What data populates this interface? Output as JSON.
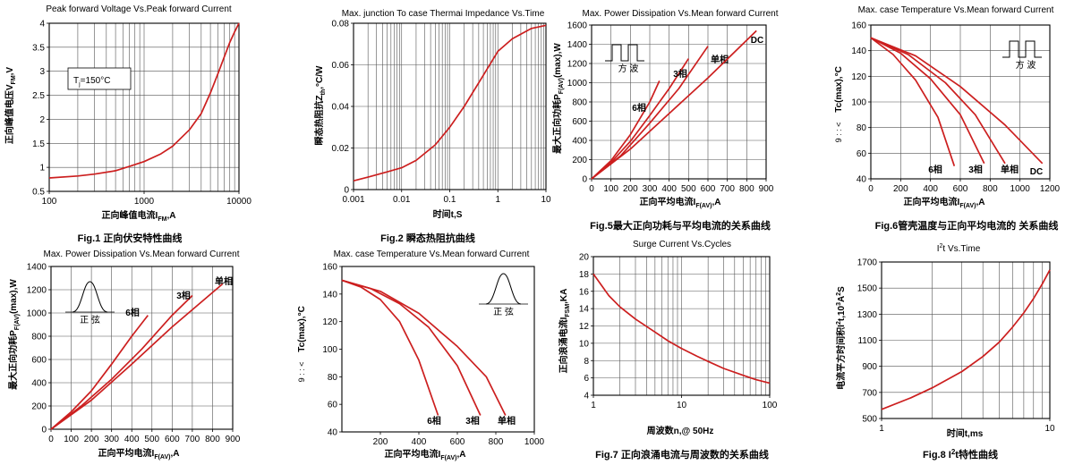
{
  "chart_data": [
    {
      "id": "fig1",
      "type": "line",
      "title": "Peak forward Voltage Vs.Peak forward Current",
      "xlabel": "正向峰值电流I",
      "xlabel_sub": "FM",
      "xlabel_unit": ",A",
      "ylabel": "正向峰值电压V",
      "ylabel_sub": "FM",
      "ylabel_unit": ",V",
      "caption": "Fig.1 正向伏安特性曲线",
      "x_scale": "log",
      "xlim": [
        100,
        10000
      ],
      "ylim": [
        0.5,
        4
      ],
      "xticks": [
        100,
        1000,
        10000
      ],
      "xtick_labels": [
        "100",
        "1000",
        "10000"
      ],
      "yticks": [
        0.5,
        1,
        1.5,
        2,
        2.5,
        3,
        3.5,
        4
      ],
      "ytick_labels": [
        "0.5",
        "1",
        "1.5",
        "2",
        "2.5",
        "3",
        "3.5",
        "4"
      ],
      "grid": true,
      "annotation": {
        "text": "T",
        "sub": "j",
        "suffix": "=150°C"
      },
      "series": [
        {
          "x": [
            100,
            200,
            300,
            500,
            700,
            1000,
            1500,
            2000,
            3000,
            4000,
            5000,
            6000,
            7000,
            8000,
            9000,
            10000
          ],
          "y": [
            0.78,
            0.82,
            0.86,
            0.93,
            1.02,
            1.12,
            1.28,
            1.44,
            1.78,
            2.12,
            2.55,
            2.95,
            3.3,
            3.6,
            3.82,
            4.0
          ]
        }
      ]
    },
    {
      "id": "fig2",
      "type": "line",
      "title": "Max. junction To case Thermai Impedance Vs.Time",
      "xlabel": "时间t,S",
      "ylabel": "瞬态热阻抗Z",
      "ylabel_sub": "th",
      "ylabel_unit": ",°C/W",
      "caption": "Fig.2  瞬态热阻抗曲线",
      "x_scale": "log",
      "xlim": [
        0.001,
        10
      ],
      "ylim": [
        0,
        0.08
      ],
      "xticks": [
        0.001,
        0.01,
        0.1,
        1,
        10
      ],
      "xtick_labels": [
        "0.001",
        "0.01",
        "0.1",
        "1",
        "10"
      ],
      "yticks": [
        0,
        0.02,
        0.04,
        0.06,
        0.08
      ],
      "ytick_labels": [
        "0",
        "0.02",
        "0.04",
        "0.06",
        "0.08"
      ],
      "grid": true,
      "series": [
        {
          "x": [
            0.001,
            0.002,
            0.005,
            0.01,
            0.02,
            0.05,
            0.1,
            0.2,
            0.5,
            1,
            2,
            5,
            10
          ],
          "y": [
            0.0042,
            0.006,
            0.0085,
            0.0105,
            0.014,
            0.0215,
            0.03,
            0.04,
            0.055,
            0.0665,
            0.0725,
            0.0775,
            0.079
          ]
        }
      ]
    },
    {
      "id": "fig5",
      "type": "line",
      "title": "Max. Power Dissipation Vs.Mean forward Current",
      "xlabel": "正向平均电流I",
      "xlabel_sub": "F(AV)",
      "xlabel_unit": ",A",
      "ylabel": "最大正向功耗P",
      "ylabel_sub": "F(AV)",
      "ylabel_unit": "(max),W",
      "caption": "Fig.5最大正向功耗与平均电流的关系曲线",
      "xlim": [
        0,
        900
      ],
      "ylim": [
        0,
        1600
      ],
      "xticks": [
        0,
        100,
        200,
        300,
        400,
        500,
        600,
        700,
        800,
        900
      ],
      "xtick_labels": [
        "0",
        "100",
        "200",
        "300",
        "400",
        "500",
        "600",
        "700",
        "800",
        "900"
      ],
      "yticks": [
        0,
        200,
        400,
        600,
        800,
        1000,
        1200,
        1400,
        1600
      ],
      "ytick_labels": [
        "0",
        "200",
        "400",
        "600",
        "800",
        "1000",
        "1200",
        "1400",
        "1600"
      ],
      "grid": true,
      "inset_label": "方   波",
      "series": [
        {
          "name": "6相",
          "x": [
            0,
            100,
            200,
            300,
            350
          ],
          "y": [
            0,
            190,
            460,
            800,
            1020
          ]
        },
        {
          "name": "3相",
          "x": [
            0,
            100,
            200,
            300,
            400,
            500
          ],
          "y": [
            0,
            170,
            390,
            660,
            940,
            1250
          ]
        },
        {
          "name": "单相",
          "x": [
            0,
            150,
            300,
            450,
            600
          ],
          "y": [
            0,
            240,
            580,
            940,
            1380
          ]
        },
        {
          "name": "DC",
          "x": [
            0,
            200,
            400,
            600,
            850
          ],
          "y": [
            0,
            310,
            680,
            1050,
            1540
          ]
        }
      ]
    },
    {
      "id": "fig6",
      "type": "line",
      "title": "Max. case Temperature Vs.Mean forward Current",
      "xlabel": "正向平均电流I",
      "xlabel_sub": "F(AV)",
      "xlabel_unit": ",A",
      "ylabel": "Tc(max),°C",
      "ylabel_extra": "9 : : <",
      "caption": "Fig.6管壳温度与正向平均电流的 关系曲线",
      "xlim": [
        0,
        1200
      ],
      "ylim": [
        40,
        160
      ],
      "xticks": [
        0,
        200,
        400,
        600,
        800,
        1000,
        1200
      ],
      "xtick_labels": [
        "0",
        "200",
        "400",
        "600",
        "800",
        "1000",
        "1200"
      ],
      "yticks": [
        40,
        60,
        80,
        100,
        120,
        140,
        160
      ],
      "ytick_labels": [
        "40",
        "60",
        "80",
        "100",
        "120",
        "140",
        "160"
      ],
      "grid": true,
      "inset_label": "方   波",
      "series": [
        {
          "name": "6相",
          "x": [
            0,
            150,
            300,
            450,
            560
          ],
          "y": [
            150,
            137,
            117,
            88,
            50
          ]
        },
        {
          "name": "3相",
          "x": [
            0,
            200,
            400,
            600,
            760
          ],
          "y": [
            150,
            138,
            118,
            90,
            52
          ]
        },
        {
          "name": "单相",
          "x": [
            0,
            250,
            500,
            700,
            900
          ],
          "y": [
            150,
            137,
            115,
            90,
            52
          ]
        },
        {
          "name": "DC",
          "x": [
            0,
            300,
            600,
            900,
            1150
          ],
          "y": [
            150,
            136,
            112,
            82,
            52
          ]
        }
      ]
    },
    {
      "id": "fig3",
      "type": "line",
      "title": "Max. Power Dissipation Vs.Mean forward Current",
      "xlabel": "正向平均电流I",
      "xlabel_sub": "F(AV)",
      "xlabel_unit": ",A",
      "ylabel": "最大正向功耗P",
      "ylabel_sub": "F(AV)",
      "ylabel_unit": "(max),W",
      "caption": "",
      "xlim": [
        0,
        900
      ],
      "ylim": [
        0,
        1400
      ],
      "xticks": [
        0,
        100,
        200,
        300,
        400,
        500,
        600,
        700,
        800,
        900
      ],
      "xtick_labels": [
        "0",
        "100",
        "200",
        "300",
        "400",
        "500",
        "600",
        "700",
        "800",
        "900"
      ],
      "yticks": [
        0,
        200,
        400,
        600,
        800,
        1000,
        1200,
        1400
      ],
      "ytick_labels": [
        "0",
        "200",
        "400",
        "600",
        "800",
        "1000",
        "1200",
        "1400"
      ],
      "grid": true,
      "inset_label": "正   弦",
      "series": [
        {
          "name": "6相",
          "x": [
            0,
            100,
            200,
            300,
            400,
            480
          ],
          "y": [
            0,
            150,
            330,
            560,
            800,
            980
          ]
        },
        {
          "name": "3相",
          "x": [
            0,
            150,
            300,
            450,
            600,
            700
          ],
          "y": [
            0,
            200,
            430,
            690,
            980,
            1150
          ]
        },
        {
          "name": "单相",
          "x": [
            0,
            200,
            400,
            600,
            850
          ],
          "y": [
            0,
            250,
            560,
            880,
            1250
          ]
        }
      ]
    },
    {
      "id": "fig4",
      "type": "line",
      "title": "Max. case Temperature Vs.Mean forward Current",
      "xlabel": "正向平均电流I",
      "xlabel_sub": "F(AV)",
      "xlabel_unit": ",A",
      "ylabel": "Tc(max),°C",
      "ylabel_extra": "9 : : <",
      "caption": "",
      "xlim": [
        0,
        1000
      ],
      "ylim": [
        40,
        160
      ],
      "xticks": [
        200,
        400,
        600,
        800,
        1000
      ],
      "xtick_labels": [
        "200",
        "400",
        "600",
        "800",
        "1000"
      ],
      "yticks": [
        40,
        60,
        80,
        100,
        120,
        140,
        160
      ],
      "ytick_labels": [
        "40",
        "60",
        "80",
        "100",
        "120",
        "140",
        "160"
      ],
      "grid": false,
      "inset_label": "正   弦",
      "series": [
        {
          "name": "6相",
          "x": [
            0,
            100,
            200,
            300,
            400,
            500
          ],
          "y": [
            150,
            145,
            136,
            120,
            92,
            52
          ]
        },
        {
          "name": "3相",
          "x": [
            0,
            150,
            300,
            450,
            600,
            720
          ],
          "y": [
            150,
            144,
            133,
            116,
            88,
            52
          ]
        },
        {
          "name": "单相",
          "x": [
            0,
            200,
            400,
            600,
            750,
            850
          ],
          "y": [
            150,
            142,
            126,
            102,
            80,
            52
          ]
        }
      ]
    },
    {
      "id": "fig7",
      "type": "line",
      "title": "Surge Current Vs.Cycles",
      "xlabel": "周波数n,@ 50Hz",
      "ylabel": "正向浪涌电流I",
      "ylabel_sub": "FSM",
      "ylabel_unit": ",KA",
      "caption": "Fig.7 正向浪涌电流与周波数的关系曲线",
      "x_scale": "log",
      "xlim": [
        1,
        100
      ],
      "ylim": [
        4,
        20
      ],
      "xticks": [
        1,
        10,
        100
      ],
      "xtick_labels": [
        "1",
        "10",
        "100"
      ],
      "yticks": [
        4,
        6,
        8,
        10,
        12,
        14,
        16,
        18,
        20
      ],
      "ytick_labels": [
        "4",
        "6",
        "8",
        "10",
        "12",
        "14",
        "16",
        "18",
        "20"
      ],
      "grid": true,
      "series": [
        {
          "x": [
            1,
            1.5,
            2,
            3,
            5,
            7,
            10,
            15,
            20,
            30,
            50,
            70,
            100
          ],
          "y": [
            18,
            15.5,
            14.2,
            12.8,
            11.3,
            10.3,
            9.4,
            8.5,
            7.9,
            7.1,
            6.3,
            5.8,
            5.4
          ]
        }
      ]
    },
    {
      "id": "fig8",
      "type": "line",
      "title": "I",
      "title_sup": "2",
      "title_rest": "t  Vs.Time",
      "xlabel": "时间t,ms",
      "ylabel": "电流平方时间积I",
      "ylabel_sup": "2",
      "ylabel_unit": "t,10",
      "ylabel_unit_sup": "3",
      "ylabel_unit_end": "A",
      "ylabel_unit_sup2": "2",
      "ylabel_unit_last": "S",
      "caption": "Fig.8 I",
      "caption_sup": "2",
      "caption_rest": "t特性曲线",
      "x_scale": "log",
      "xlim": [
        1,
        10
      ],
      "ylim": [
        500,
        1700
      ],
      "xticks": [
        1,
        10
      ],
      "xtick_labels": [
        "1",
        "10"
      ],
      "yticks": [
        500,
        700,
        900,
        1100,
        1300,
        1500,
        1700
      ],
      "ytick_labels": [
        "500",
        "700",
        "900",
        "1100",
        "1300",
        "1500",
        "1700"
      ],
      "grid": true,
      "series": [
        {
          "x": [
            1,
            1.5,
            2,
            3,
            4,
            5,
            6,
            7,
            8,
            9,
            10
          ],
          "y": [
            570,
            660,
            735,
            860,
            975,
            1085,
            1200,
            1310,
            1420,
            1530,
            1640
          ]
        }
      ]
    }
  ],
  "colors": {
    "curve": "#cc1f1f",
    "axis": "#000000",
    "grid": "#555555",
    "text": "#000000"
  }
}
